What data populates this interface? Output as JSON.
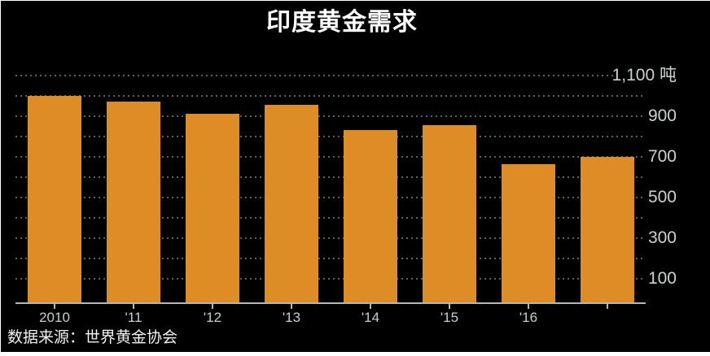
{
  "title": "印度黄金需求",
  "source_label": "数据来源：世界黄金协会",
  "colors": {
    "background": "#000000",
    "page_background": "#ffffff",
    "bar": "#de8c26",
    "grid": "#616161",
    "axis": "#b2b8b8",
    "title_text": "#ffffff",
    "ytick_text": "#cdd1d1",
    "xtick_text": "#c9cdcd",
    "source_text": "#f2f2f2"
  },
  "chart_data": {
    "type": "bar",
    "title": "印度黄金需求",
    "unit": "吨",
    "categories": [
      "2010",
      "'11",
      "'12",
      "'13",
      "'14",
      "'15",
      "'16",
      ""
    ],
    "values": [
      1002,
      974,
      914,
      958,
      833,
      857,
      666,
      700
    ],
    "xlabel": "",
    "ylabel": "吨",
    "ylim": [
      0,
      1100
    ],
    "grid_interval": 100,
    "grid_style": "dotted",
    "ytick_values": [
      100,
      300,
      500,
      700,
      900,
      1100
    ],
    "ytick_labels": [
      "100",
      "300",
      "500",
      "700",
      "900",
      "1,100 吨"
    ],
    "ylabel_side": "right",
    "legend": "none",
    "source": "数据来源：世界黄金协会"
  }
}
